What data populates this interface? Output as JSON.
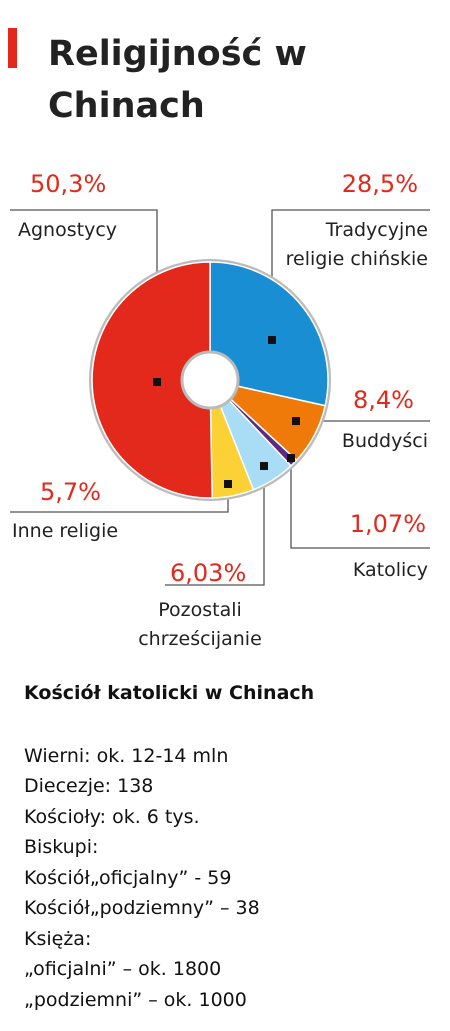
{
  "chart_data": {
    "type": "pie",
    "title": "Religijność w Chinach",
    "categories": [
      "Tradycyjne religie chińskie",
      "Buddyści",
      "Katolicy",
      "Pozostali chrześcijanie",
      "Inne religie",
      "Agnostycy"
    ],
    "values": [
      28.5,
      8.4,
      1.07,
      6.03,
      5.7,
      50.3
    ],
    "value_labels": [
      "28,5%",
      "8,4%",
      "1,07%",
      "6,03%",
      "5,7%",
      "50,3%"
    ],
    "colors": [
      "#1a8ed3",
      "#ef7a0a",
      "#5b2a86",
      "#a9dcf5",
      "#fbd136",
      "#e2291b"
    ]
  },
  "info": {
    "title": "Kościół katolicki  w Chinach",
    "lines": [
      "Wierni: ok. 12-14 mln",
      "Diecezje: 138",
      "Kościoły: ok. 6 tys.",
      "Biskupi:",
      "Kościół„oficjalny” - 59",
      "Kościół„podziemny” – 38",
      "Księża:",
      "„oficjalni” – ok. 1800",
      "„podziemni” – ok. 1000"
    ]
  }
}
